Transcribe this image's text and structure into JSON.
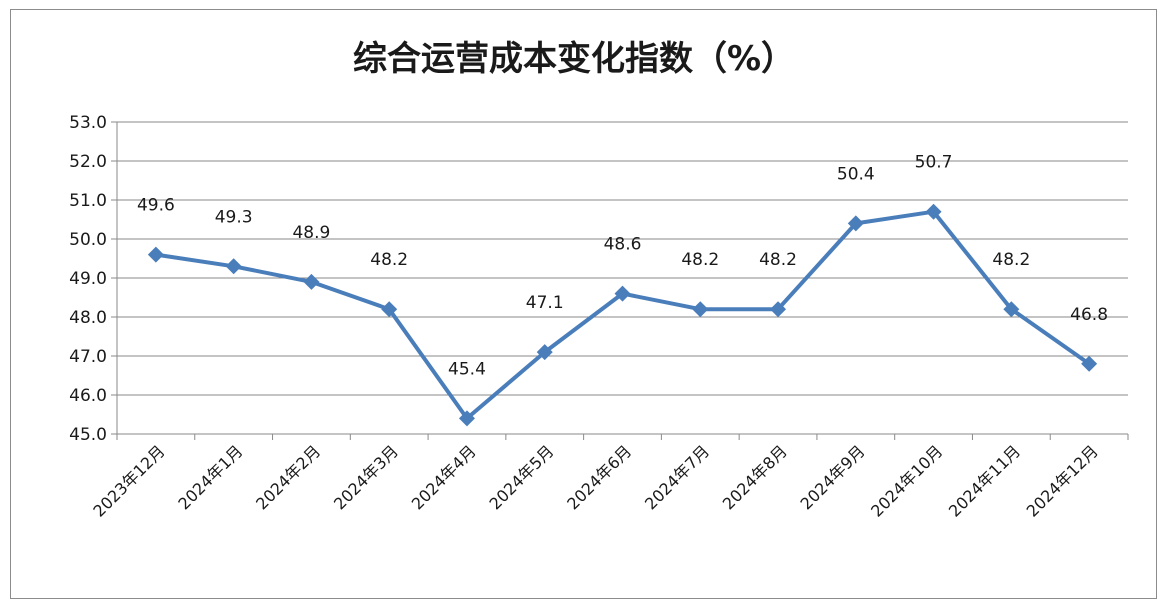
{
  "chart_data": {
    "type": "line",
    "title": "综合运营成本变化指数（%）",
    "xlabel": "",
    "ylabel": "",
    "categories": [
      "2023年12月",
      "2024年1月",
      "2024年2月",
      "2024年3月",
      "2024年4月",
      "2024年5月",
      "2024年6月",
      "2024年7月",
      "2024年8月",
      "2024年9月",
      "2024年10月",
      "2024年11月",
      "2024年12月"
    ],
    "series": [
      {
        "values": [
          49.6,
          49.3,
          48.9,
          48.2,
          45.4,
          47.1,
          48.6,
          48.2,
          48.2,
          50.4,
          50.7,
          48.2,
          46.8
        ],
        "color": "#4a7ebb",
        "marker": "diamond"
      }
    ],
    "data_labels": [
      "49.6",
      "49.3",
      "48.9",
      "48.2",
      "45.4",
      "47.1",
      "48.6",
      "48.2",
      "48.2",
      "50.4",
      "50.7",
      "48.2",
      "46.8"
    ],
    "ylim": [
      45.0,
      53.0
    ],
    "yticks": [
      45.0,
      46.0,
      47.0,
      48.0,
      49.0,
      50.0,
      51.0,
      52.0,
      53.0
    ],
    "ytick_labels": [
      "45.0",
      "46.0",
      "47.0",
      "48.0",
      "49.0",
      "50.0",
      "51.0",
      "52.0",
      "53.0"
    ],
    "grid": true,
    "legend": "none"
  }
}
